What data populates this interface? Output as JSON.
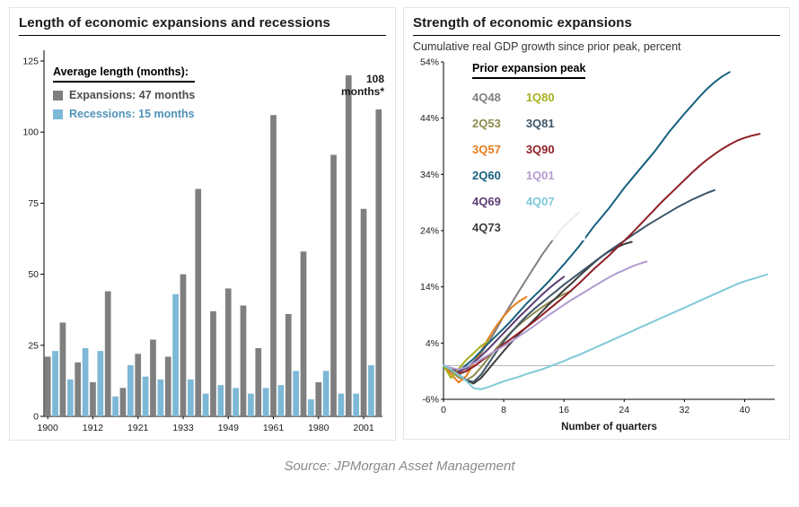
{
  "caption": "Source: JPMorgan Asset Management",
  "chart_data": [
    {
      "type": "bar",
      "title": "Length of economic expansions and recessions",
      "legend_title": "Average length (months):",
      "annotation": "108 months*",
      "ylim": [
        0,
        125
      ],
      "yticks": [
        0,
        25,
        50,
        75,
        100,
        125
      ],
      "xtick_labels": [
        "1900",
        "1912",
        "1921",
        "1933",
        "1949",
        "1961",
        "1980",
        "2001"
      ],
      "xtick_expansion_indices": [
        0,
        3,
        6,
        9,
        12,
        15,
        18,
        21
      ],
      "bar_order": "alternating expansion/recession pairs in chronological order",
      "series": [
        {
          "name": "Expansions",
          "legend_label": "Expansions: 47 months",
          "color": "#7f7f7f",
          "label_color": "#4d4d4d",
          "values": [
            21,
            33,
            19,
            12,
            44,
            10,
            22,
            27,
            21,
            50,
            80,
            37,
            45,
            39,
            24,
            106,
            36,
            58,
            12,
            92,
            120,
            73,
            108
          ]
        },
        {
          "name": "Recessions",
          "legend_label": "Recessions: 15 months",
          "color": "#7db8d6",
          "label_color": "#4e92b8",
          "values": [
            23,
            13,
            24,
            23,
            7,
            18,
            14,
            13,
            43,
            13,
            8,
            11,
            10,
            8,
            10,
            11,
            16,
            6,
            16,
            8,
            8,
            18
          ]
        }
      ]
    },
    {
      "type": "line",
      "title": "Strength of economic expansions",
      "subtitle": "Cumulative real GDP growth since prior peak, percent",
      "legend_title": "Prior expansion peak",
      "xlabel": "Number of quarters",
      "xlim": [
        0,
        44
      ],
      "xticks": [
        0,
        8,
        16,
        24,
        32,
        40
      ],
      "ylim": [
        -6,
        54
      ],
      "yticks": [
        -6,
        4,
        14,
        24,
        34,
        44,
        54
      ],
      "ytick_suffix": "%",
      "legend_columns": [
        [
          "4Q48",
          "2Q53",
          "3Q57",
          "2Q60",
          "4Q69",
          "4Q73"
        ],
        [
          "1Q80",
          "3Q81",
          "3Q90",
          "1Q01",
          "4Q07"
        ]
      ],
      "series": [
        {
          "name": "4Q48",
          "color": "#808080",
          "values": [
            0,
            -0.7,
            -1.6,
            -1.0,
            0.6,
            2.2,
            4.2,
            6.4,
            8.8,
            11.0,
            13.2,
            15.3,
            17.4,
            19.5,
            21.4,
            23.2,
            24.8,
            26.0,
            27.2
          ]
        },
        {
          "name": "2Q53",
          "color": "#8b8b4e",
          "values": [
            0,
            -1.0,
            -2.1,
            -2.6,
            -1.8,
            -0.3,
            1.4,
            3.0,
            4.6,
            6.0,
            7.2,
            8.3,
            9.3,
            10.3,
            11.2,
            12.0,
            12.7,
            13.3
          ]
        },
        {
          "name": "3Q57",
          "color": "#e87d1e",
          "values": [
            0,
            -1.5,
            -3.0,
            -1.9,
            0.3,
            2.6,
            4.9,
            7.0,
            8.8,
            10.3,
            11.4,
            12.2
          ]
        },
        {
          "name": "2Q60",
          "color": "#17617f",
          "values": [
            0,
            -0.6,
            -1.0,
            0.1,
            1.2,
            2.6,
            4.0,
            5.3,
            6.6,
            8.0,
            9.5,
            11.0,
            12.3,
            13.6,
            15.0,
            16.5,
            18.0,
            19.6,
            21.2,
            23.0,
            24.8,
            26.4,
            28.0,
            29.8,
            31.6,
            33.2,
            34.8,
            36.4,
            38.0,
            39.8,
            41.6,
            43.2,
            44.8,
            46.3,
            47.8,
            49.2,
            50.4,
            51.4,
            52.2
          ]
        },
        {
          "name": "4Q69",
          "color": "#5b3d73",
          "values": [
            0,
            -0.6,
            -1.1,
            -0.5,
            0.6,
            1.7,
            3.0,
            4.4,
            5.8,
            7.2,
            8.6,
            9.9,
            11.2,
            12.5,
            13.7,
            14.8,
            15.8
          ]
        },
        {
          "name": "4Q73",
          "color": "#3d3d3d",
          "values": [
            0,
            -0.6,
            -1.6,
            -2.6,
            -3.2,
            -2.2,
            -0.6,
            1.0,
            2.6,
            4.1,
            5.6,
            6.8,
            8.1,
            9.5,
            10.9,
            12.1,
            13.4,
            14.6,
            15.9,
            17.1,
            18.3,
            19.4,
            20.3,
            21.0,
            21.6,
            22.0
          ]
        },
        {
          "name": "1Q80",
          "color": "#a6b11e",
          "values": [
            0,
            -2.2,
            -0.6,
            1.0,
            2.2,
            3.5,
            4.4
          ]
        },
        {
          "name": "3Q81",
          "color": "#3f5568",
          "values": [
            0,
            -0.6,
            -1.6,
            -2.6,
            -2.9,
            -1.6,
            0.4,
            2.4,
            4.3,
            5.9,
            7.4,
            8.8,
            10.0,
            11.1,
            12.2,
            13.3,
            14.4,
            15.4,
            16.4,
            17.4,
            18.4,
            19.4,
            20.4,
            21.3,
            22.2,
            23.1,
            24.0,
            24.9,
            25.7,
            26.5,
            27.3,
            28.1,
            28.8,
            29.5,
            30.1,
            30.7,
            31.2
          ]
        },
        {
          "name": "3Q90",
          "color": "#8f2025",
          "values": [
            0,
            -0.6,
            -1.4,
            -1.0,
            -0.2,
            0.8,
            1.8,
            2.8,
            3.8,
            4.8,
            5.8,
            6.8,
            7.8,
            8.9,
            10.0,
            11.1,
            12.2,
            13.4,
            14.6,
            15.9,
            17.2,
            18.4,
            19.6,
            20.9,
            22.2,
            23.5,
            24.9,
            26.3,
            27.7,
            29.1,
            30.4,
            31.7,
            33.0,
            34.3,
            35.5,
            36.6,
            37.6,
            38.5,
            39.3,
            40.0,
            40.5,
            40.9,
            41.2
          ]
        },
        {
          "name": "1Q01",
          "color": "#b19cd0",
          "values": [
            0,
            -0.4,
            -0.7,
            -0.3,
            0.4,
            1.1,
            1.9,
            2.7,
            3.5,
            4.3,
            5.2,
            6.1,
            7.0,
            8.0,
            9.0,
            9.9,
            10.8,
            11.7,
            12.5,
            13.3,
            14.1,
            14.9,
            15.7,
            16.4,
            17.0,
            17.6,
            18.1,
            18.5
          ]
        },
        {
          "name": "4Q07",
          "color": "#7fc9d8",
          "values": [
            0,
            -0.7,
            -1.6,
            -2.7,
            -4.0,
            -4.2,
            -3.8,
            -3.3,
            -2.8,
            -2.4,
            -2.0,
            -1.5,
            -1.1,
            -0.7,
            -0.2,
            0.3,
            0.8,
            1.4,
            1.9,
            2.5,
            3.1,
            3.7,
            4.3,
            4.9,
            5.5,
            6.1,
            6.7,
            7.3,
            7.9,
            8.5,
            9.1,
            9.7,
            10.3,
            10.9,
            11.5,
            12.1,
            12.7,
            13.3,
            13.9,
            14.5,
            15.0,
            15.4,
            15.8,
            16.2
          ]
        }
      ]
    }
  ]
}
